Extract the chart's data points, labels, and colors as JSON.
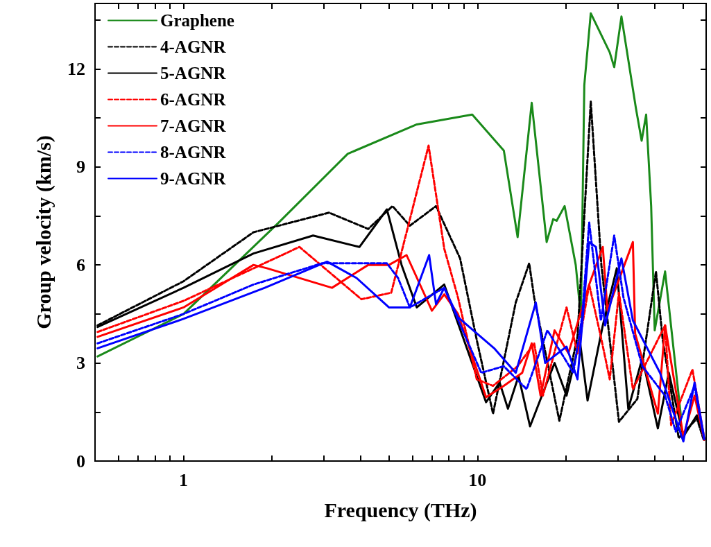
{
  "chart_data": {
    "type": "line",
    "xlabel": "Frequency (THz)",
    "ylabel": "Group velocity (km/s)",
    "log": "x",
    "xlim": [
      0.5,
      60
    ],
    "ylim": [
      0,
      14
    ],
    "xticks": [
      {
        "value": 0.6,
        "label": null
      },
      {
        "value": 0.7,
        "label": null
      },
      {
        "value": 0.8,
        "label": null
      },
      {
        "value": 0.9,
        "label": null
      },
      1,
      {
        "value": 2,
        "label": null
      },
      {
        "value": 3,
        "label": null
      },
      {
        "value": 4,
        "label": null
      },
      {
        "value": 5,
        "label": null
      },
      {
        "value": 6,
        "label": null
      },
      {
        "value": 7,
        "label": null
      },
      {
        "value": 8,
        "label": null
      },
      {
        "value": 9,
        "label": null
      },
      10,
      {
        "value": 20,
        "label": null
      },
      {
        "value": 30,
        "label": null
      },
      {
        "value": 40,
        "label": null
      },
      {
        "value": 50,
        "label": null
      }
    ],
    "yticks": [
      0,
      {
        "value": 1.5,
        "label": null
      },
      3,
      {
        "value": 4.5,
        "label": null
      },
      6,
      {
        "value": 7.5,
        "label": null
      },
      9,
      {
        "value": 10.5,
        "label": null
      },
      12,
      {
        "value": 13.5,
        "label": null
      }
    ],
    "grid": false,
    "legend": "top left",
    "marker": "none",
    "series": [
      {
        "name": "Graphene",
        "color": "#1a8a1a",
        "line_style": "solid",
        "x": [
          0.51,
          1,
          2.11,
          3.62,
          6.22,
          9.6,
          12.3,
          13.7,
          15.3,
          17.2,
          18.1,
          18.6,
          19.8,
          21.6,
          22.5,
          23.1,
          24.3,
          28.2,
          29.2,
          30.9,
          34.6,
          36.2,
          37.5,
          39.0,
          40.1,
          43.5,
          49.2
        ],
        "values": [
          3.2,
          4.5,
          7.3,
          9.4,
          10.3,
          10.6,
          9.5,
          6.85,
          10.96,
          6.7,
          7.4,
          7.35,
          7.8,
          6.0,
          4.4,
          11.5,
          13.7,
          12.5,
          12.05,
          13.6,
          10.8,
          9.8,
          10.6,
          7.8,
          4.0,
          5.8,
          1.4
        ]
      },
      {
        "name": "4-AGNR",
        "color": "#000000",
        "line_style": "dashed",
        "x": [
          0.51,
          1,
          1.73,
          3.13,
          4.25,
          5.14,
          5.89,
          7.23,
          8.73,
          9.95,
          11.3,
          13.5,
          15.0,
          15.6,
          19.0,
          21.9,
          24.3,
          26.4,
          30.3,
          35.0,
          40.5,
          42.7,
          48.4,
          55.8,
          59.1
        ],
        "values": [
          4.15,
          5.5,
          7.0,
          7.6,
          7.1,
          7.8,
          7.2,
          7.8,
          6.2,
          3.7,
          1.45,
          4.85,
          6.05,
          5.0,
          1.23,
          3.8,
          11.0,
          6.0,
          1.2,
          1.9,
          5.8,
          3.7,
          0.7,
          1.3,
          0.6
        ]
      },
      {
        "name": "5-AGNR",
        "color": "#000000",
        "line_style": "solid",
        "x": [
          0.51,
          1,
          1.73,
          2.76,
          3.97,
          4.92,
          5.52,
          6.22,
          7.71,
          10.7,
          11.9,
          12.7,
          13.8,
          15.1,
          18.3,
          20.1,
          22.3,
          23.7,
          26.7,
          29.8,
          32.6,
          36.4,
          41.1,
          44.8,
          50.2,
          55.8,
          59.1
        ],
        "values": [
          4.1,
          5.3,
          6.35,
          6.9,
          6.55,
          7.7,
          6.0,
          4.7,
          5.4,
          1.8,
          2.4,
          1.6,
          2.6,
          1.06,
          3.0,
          2.0,
          3.7,
          1.85,
          4.15,
          5.9,
          1.6,
          3.15,
          1.0,
          2.7,
          0.75,
          1.4,
          0.65
        ]
      },
      {
        "name": "6-AGNR",
        "color": "#ff0000",
        "line_style": "dashed",
        "x": [
          0.51,
          1,
          2.48,
          4.03,
          5.09,
          6.82,
          7.71,
          8.59,
          9.95,
          11.3,
          13.7,
          15.6,
          16.7,
          20.1,
          21.9,
          24.0,
          26.3,
          28.2,
          30.3,
          33.8,
          43.5,
          45.6,
          53.9,
          59.1
        ],
        "values": [
          3.95,
          4.9,
          6.55,
          4.95,
          5.15,
          9.65,
          6.5,
          5.0,
          2.5,
          2.3,
          2.9,
          3.6,
          2.0,
          4.7,
          3.3,
          5.4,
          3.8,
          2.5,
          5.15,
          2.2,
          4.15,
          1.1,
          2.8,
          0.7
        ]
      },
      {
        "name": "7-AGNR",
        "color": "#ff0000",
        "line_style": "solid",
        "x": [
          0.51,
          1,
          1.73,
          1.92,
          3.2,
          4.25,
          5.0,
          5.74,
          7.0,
          7.71,
          8.59,
          10.7,
          12.3,
          14.2,
          15.3,
          16.4,
          18.3,
          20.4,
          24.0,
          26.7,
          27.7,
          33.8,
          34.4,
          41.1,
          43.5,
          50.2,
          54.8,
          59.1
        ],
        "values": [
          3.8,
          4.7,
          6.0,
          5.9,
          5.3,
          6.0,
          6.0,
          6.3,
          4.6,
          5.1,
          4.5,
          1.95,
          2.3,
          2.7,
          3.6,
          2.0,
          4.0,
          3.3,
          5.4,
          6.55,
          4.6,
          6.7,
          3.9,
          1.45,
          4.15,
          0.75,
          2.0,
          0.65
        ]
      },
      {
        "name": "8-AGNR",
        "color": "#0000ff",
        "line_style": "dashed",
        "x": [
          0.51,
          1,
          1.73,
          2.96,
          4.92,
          5.37,
          5.89,
          7.71,
          10.3,
          12.3,
          14.7,
          17.3,
          21.2,
          22.7,
          24.0,
          26.3,
          29.2,
          31.4,
          36.4,
          43.5,
          47.3,
          54.8,
          59.1
        ],
        "values": [
          3.6,
          4.5,
          5.4,
          6.05,
          6.05,
          5.6,
          4.7,
          5.3,
          2.7,
          2.9,
          2.2,
          4.0,
          2.7,
          4.4,
          7.3,
          4.3,
          6.9,
          5.0,
          2.9,
          2.0,
          0.9,
          2.3,
          0.65
        ]
      },
      {
        "name": "9-AGNR",
        "color": "#0000ff",
        "line_style": "solid",
        "x": [
          0.51,
          1,
          1.89,
          3.08,
          3.88,
          5.0,
          5.89,
          6.85,
          7.23,
          7.71,
          8.59,
          11.4,
          13.5,
          15.8,
          17.0,
          20.1,
          21.9,
          24.0,
          25.3,
          27.2,
          30.9,
          33.8,
          41.8,
          50.2,
          54.8,
          59.1
        ],
        "values": [
          3.45,
          4.35,
          5.3,
          6.1,
          5.6,
          4.7,
          4.7,
          6.3,
          4.8,
          5.3,
          4.4,
          3.45,
          2.7,
          4.85,
          3.0,
          3.5,
          2.5,
          6.7,
          6.55,
          4.15,
          6.2,
          4.3,
          2.7,
          0.6,
          2.4,
          0.7
        ]
      }
    ]
  }
}
